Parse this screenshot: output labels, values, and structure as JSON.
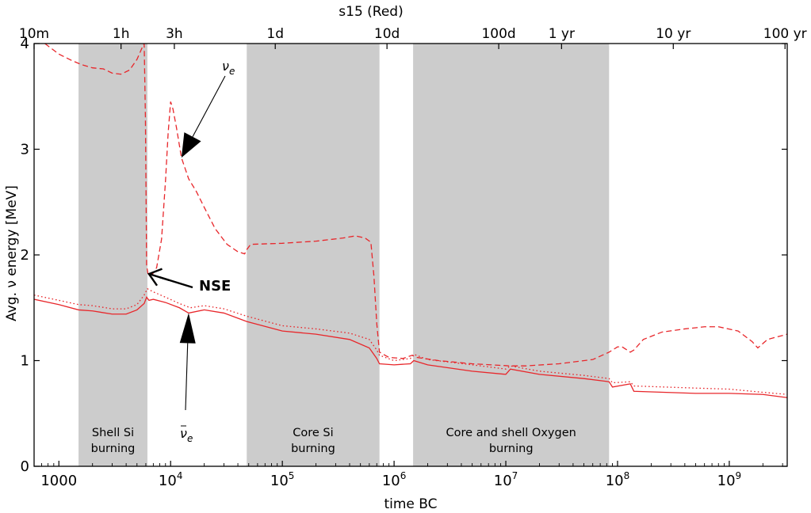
{
  "chart_data": {
    "type": "line",
    "title": "s15 (Red)",
    "xlabel": "time BC",
    "ylabel": "Avg. ν energy [MeV]",
    "x_scale": "log",
    "xlim": [
      600,
      3300000000
    ],
    "ylim": [
      0,
      4
    ],
    "grid": false,
    "x_ticks": [
      {
        "value": 1000,
        "label": "1000"
      },
      {
        "value": 10000,
        "label": "10^4"
      },
      {
        "value": 100000,
        "label": "10^5"
      },
      {
        "value": 1000000,
        "label": "10^6"
      },
      {
        "value": 10000000,
        "label": "10^7"
      },
      {
        "value": 100000000,
        "label": "10^8"
      },
      {
        "value": 1000000000,
        "label": "10^9"
      }
    ],
    "y_ticks": [
      0,
      1,
      2,
      3,
      4
    ],
    "top_axis_ticks": [
      {
        "value": 600,
        "label": "10m"
      },
      {
        "value": 3600,
        "label": "1h"
      },
      {
        "value": 10800,
        "label": "3h"
      },
      {
        "value": 86400,
        "label": "1d"
      },
      {
        "value": 864000,
        "label": "10d"
      },
      {
        "value": 8640000,
        "label": "100d"
      },
      {
        "value": 31536000,
        "label": "1 yr"
      },
      {
        "value": 315360000,
        "label": "10 yr"
      },
      {
        "value": 3153600000,
        "label": "100 yr"
      }
    ],
    "shaded_regions": [
      {
        "x0": 1500,
        "x1": 6200,
        "label_lines": [
          "Shell Si",
          "burning"
        ]
      },
      {
        "x0": 48000,
        "x1": 740000,
        "label_lines": [
          "Core Si",
          "burning"
        ]
      },
      {
        "x0": 1480000,
        "x1": 84000000,
        "label_lines": [
          "Core and shell Oxygen",
          "burning"
        ]
      }
    ],
    "annotations": [
      {
        "text": "ν_e",
        "target_x": 12500,
        "target_y": 2.92
      },
      {
        "text": "ν̄_e",
        "target_x": 14500,
        "target_y": 1.45
      },
      {
        "text": "NSE",
        "target_x": 6400,
        "target_y": 1.82
      }
    ],
    "series": [
      {
        "style": "dashed",
        "color": "#e8262a",
        "points": [
          [
            750,
            4.0
          ],
          [
            1000,
            3.9
          ],
          [
            1300,
            3.84
          ],
          [
            1600,
            3.8
          ],
          [
            2000,
            3.77
          ],
          [
            2500,
            3.76
          ],
          [
            3000,
            3.72
          ],
          [
            3600,
            3.71
          ],
          [
            4300,
            3.75
          ],
          [
            5000,
            3.85
          ],
          [
            5500,
            3.95
          ],
          [
            5800,
            4.0
          ],
          [
            5950,
            3.3
          ],
          [
            6100,
            1.9
          ],
          [
            6300,
            1.81
          ],
          [
            6900,
            1.82
          ],
          [
            7500,
            1.88
          ],
          [
            8300,
            2.15
          ],
          [
            9000,
            2.7
          ],
          [
            9500,
            3.15
          ],
          [
            10000,
            3.45
          ],
          [
            10500,
            3.38
          ],
          [
            11300,
            3.2
          ],
          [
            12500,
            2.92
          ],
          [
            14500,
            2.72
          ],
          [
            17000,
            2.6
          ],
          [
            20000,
            2.45
          ],
          [
            25000,
            2.25
          ],
          [
            32000,
            2.1
          ],
          [
            40000,
            2.03
          ],
          [
            46000,
            2.01
          ],
          [
            48000,
            2.05
          ],
          [
            52000,
            2.1
          ],
          [
            100000,
            2.11
          ],
          [
            200000,
            2.13
          ],
          [
            350000,
            2.16
          ],
          [
            450000,
            2.18
          ],
          [
            550000,
            2.16
          ],
          [
            620000,
            2.12
          ],
          [
            660000,
            1.8
          ],
          [
            700000,
            1.35
          ],
          [
            740000,
            1.08
          ],
          [
            900000,
            1.03
          ],
          [
            1200000,
            1.02
          ],
          [
            1450000,
            1.05
          ],
          [
            1600000,
            1.03
          ],
          [
            2500000,
            1.0
          ],
          [
            5000000,
            0.97
          ],
          [
            11000000,
            0.95
          ],
          [
            15000000,
            0.95
          ],
          [
            30000000,
            0.97
          ],
          [
            60000000,
            1.01
          ],
          [
            84000000,
            1.08
          ],
          [
            100000000,
            1.13
          ],
          [
            110000000,
            1.13
          ],
          [
            130000000,
            1.08
          ],
          [
            140000000,
            1.1
          ],
          [
            170000000,
            1.2
          ],
          [
            250000000,
            1.27
          ],
          [
            400000000,
            1.3
          ],
          [
            600000000,
            1.32
          ],
          [
            800000000,
            1.32
          ],
          [
            1200000000,
            1.28
          ],
          [
            1600000000,
            1.18
          ],
          [
            1800000000,
            1.12
          ],
          [
            2200000000,
            1.2
          ],
          [
            3300000000,
            1.25
          ]
        ]
      },
      {
        "style": "dotted",
        "color": "#e8262a",
        "points": [
          [
            600,
            1.62
          ],
          [
            1000,
            1.57
          ],
          [
            1500,
            1.53
          ],
          [
            2000,
            1.52
          ],
          [
            3000,
            1.49
          ],
          [
            4000,
            1.49
          ],
          [
            5000,
            1.53
          ],
          [
            5800,
            1.62
          ],
          [
            6200,
            1.68
          ],
          [
            7000,
            1.65
          ],
          [
            9000,
            1.6
          ],
          [
            12000,
            1.54
          ],
          [
            15000,
            1.5
          ],
          [
            20000,
            1.52
          ],
          [
            30000,
            1.49
          ],
          [
            48000,
            1.42
          ],
          [
            100000,
            1.33
          ],
          [
            200000,
            1.3
          ],
          [
            400000,
            1.26
          ],
          [
            600000,
            1.2
          ],
          [
            700000,
            1.1
          ],
          [
            740000,
            1.05
          ],
          [
            1000000,
            1.0
          ],
          [
            1400000,
            1.02
          ],
          [
            1500000,
            1.06
          ],
          [
            2000000,
            1.01
          ],
          [
            5000000,
            0.96
          ],
          [
            10000000,
            0.92
          ],
          [
            11000000,
            0.95
          ],
          [
            20000000,
            0.9
          ],
          [
            50000000,
            0.86
          ],
          [
            84000000,
            0.83
          ],
          [
            90000000,
            0.79
          ],
          [
            130000000,
            0.8
          ],
          [
            140000000,
            0.76
          ],
          [
            500000000,
            0.74
          ],
          [
            1000000000,
            0.73
          ],
          [
            2000000000,
            0.7
          ],
          [
            3300000000,
            0.68
          ]
        ]
      },
      {
        "style": "solid",
        "color": "#e8262a",
        "points": [
          [
            600,
            1.58
          ],
          [
            1000,
            1.53
          ],
          [
            1500,
            1.48
          ],
          [
            2000,
            1.47
          ],
          [
            3000,
            1.44
          ],
          [
            4000,
            1.44
          ],
          [
            5000,
            1.48
          ],
          [
            5800,
            1.54
          ],
          [
            6100,
            1.6
          ],
          [
            6400,
            1.57
          ],
          [
            7000,
            1.58
          ],
          [
            9000,
            1.55
          ],
          [
            12000,
            1.5
          ],
          [
            14500,
            1.45
          ],
          [
            20000,
            1.48
          ],
          [
            30000,
            1.45
          ],
          [
            48000,
            1.37
          ],
          [
            100000,
            1.28
          ],
          [
            200000,
            1.25
          ],
          [
            400000,
            1.2
          ],
          [
            600000,
            1.12
          ],
          [
            700000,
            1.02
          ],
          [
            740000,
            0.97
          ],
          [
            1000000,
            0.96
          ],
          [
            1400000,
            0.97
          ],
          [
            1500000,
            1.0
          ],
          [
            2000000,
            0.96
          ],
          [
            5000000,
            0.9
          ],
          [
            10000000,
            0.87
          ],
          [
            11000000,
            0.92
          ],
          [
            20000000,
            0.87
          ],
          [
            50000000,
            0.83
          ],
          [
            84000000,
            0.8
          ],
          [
            90000000,
            0.75
          ],
          [
            130000000,
            0.78
          ],
          [
            140000000,
            0.71
          ],
          [
            500000000,
            0.69
          ],
          [
            1000000000,
            0.69
          ],
          [
            2000000000,
            0.68
          ],
          [
            3300000000,
            0.65
          ]
        ]
      }
    ]
  }
}
